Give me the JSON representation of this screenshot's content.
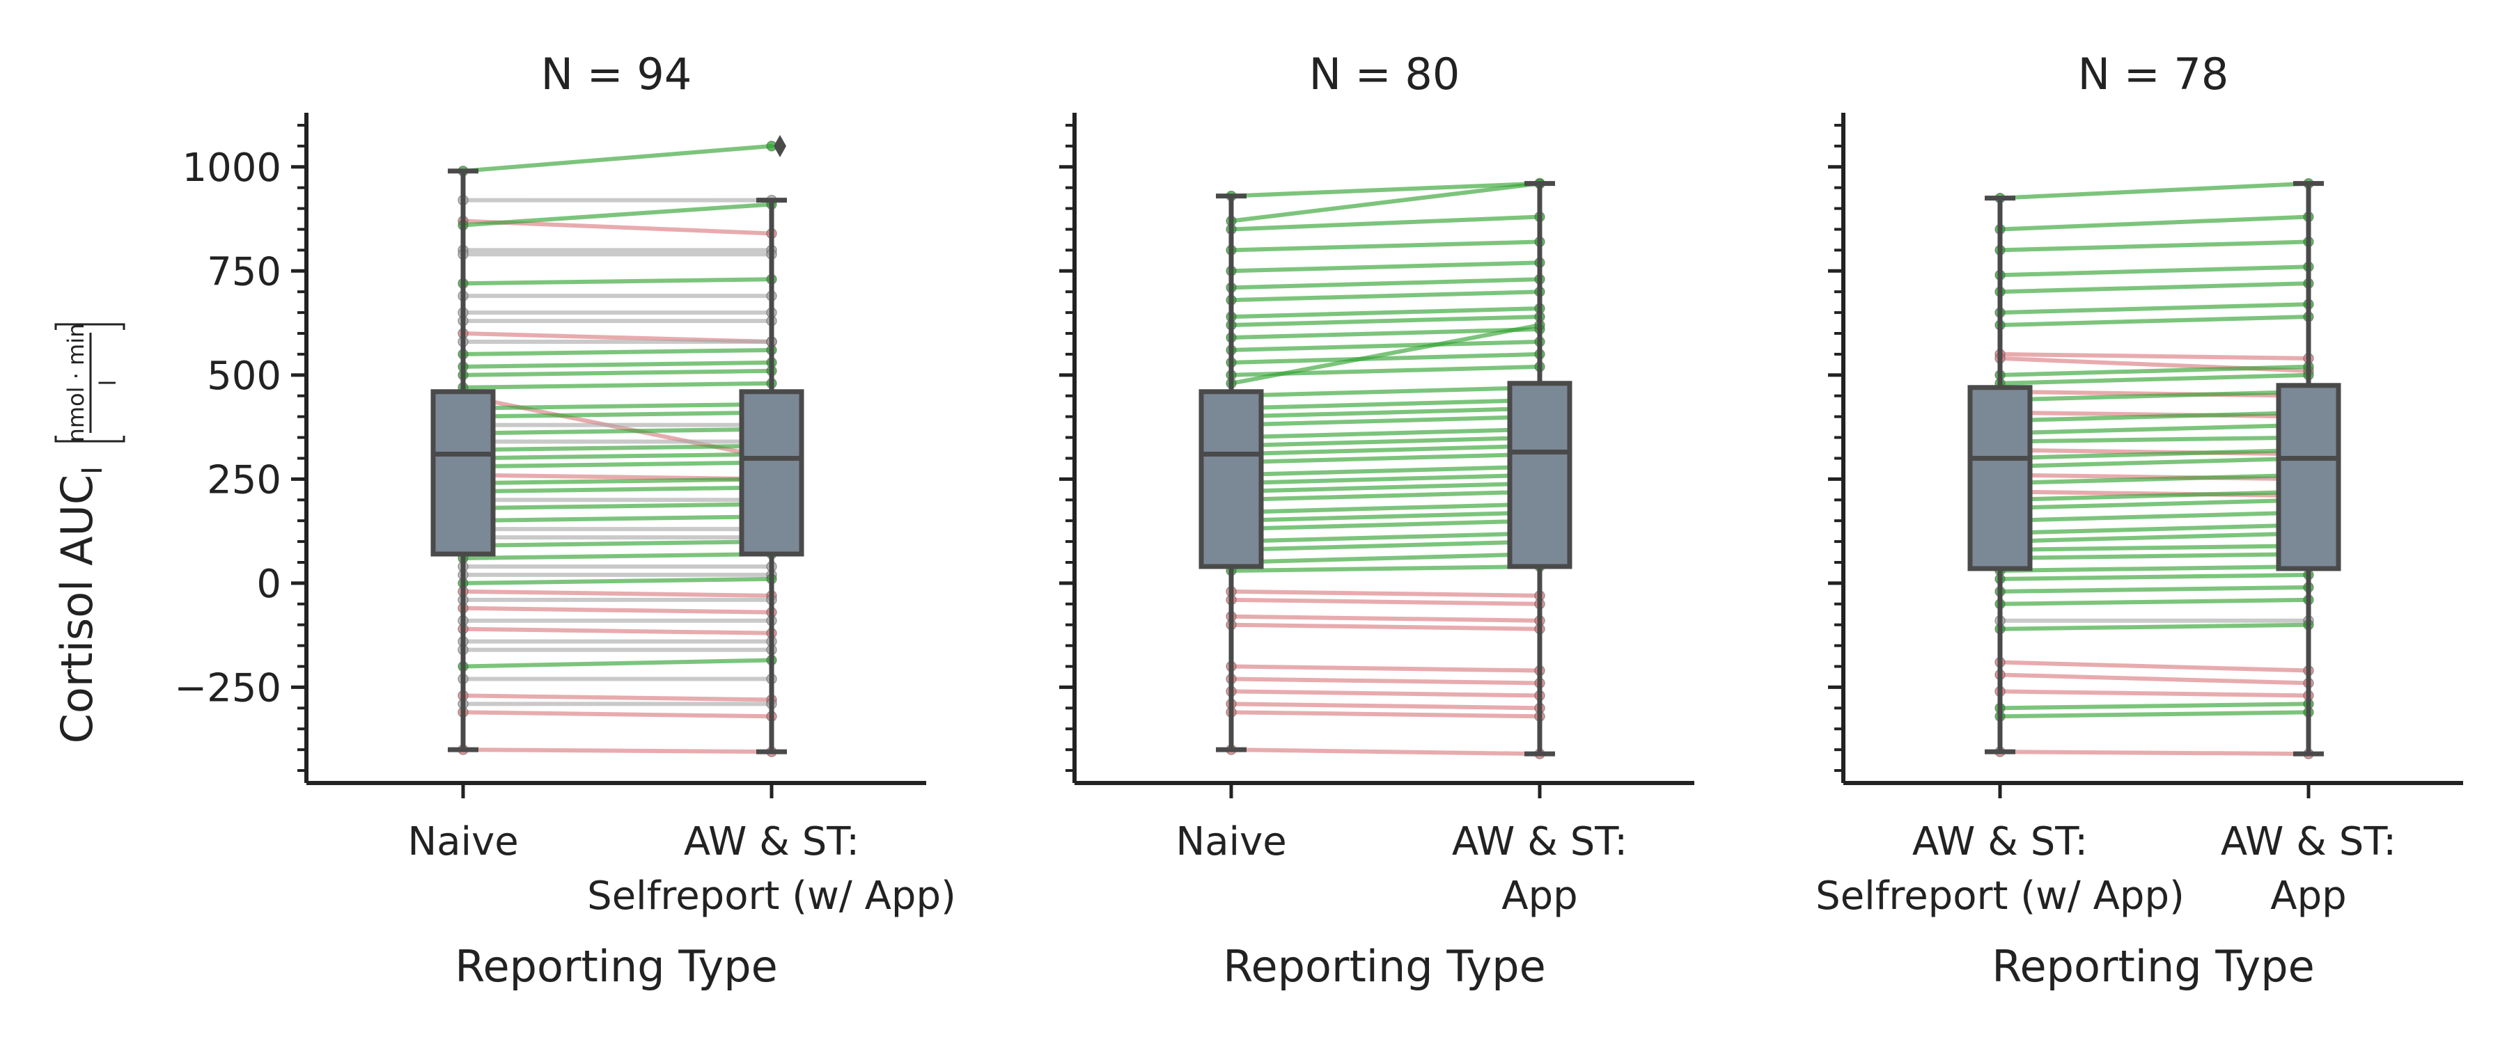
{
  "figure": {
    "ylabel_main": "Cortisol AUC",
    "ylabel_sub": "I",
    "ylabel_unit_numerator": "nmol · min",
    "ylabel_unit_denominator": "l"
  },
  "chart_data": [
    {
      "type": "box",
      "title": "N = 94",
      "xlabel": "Reporting Type",
      "categories": [
        [
          "Naive"
        ],
        [
          "AW & ST:",
          "Selfreport (w/ App)"
        ]
      ],
      "ylim": [
        -480,
        1130
      ],
      "yticks": [
        -250,
        0,
        250,
        500,
        750,
        1000
      ],
      "show_y_tick_labels": true,
      "boxes": [
        {
          "q1": 70,
          "median": 310,
          "q3": 460,
          "whisker_low": -400,
          "whisker_high": 990,
          "outliers": []
        },
        {
          "q1": 70,
          "median": 300,
          "q3": 460,
          "whisker_low": -405,
          "whisker_high": 920,
          "outliers": [
            1050
          ]
        }
      ],
      "pairs": [
        {
          "a": 990,
          "b": 1050,
          "change": "increase"
        },
        {
          "a": 920,
          "b": 920,
          "change": "none"
        },
        {
          "a": 870,
          "b": 840,
          "change": "decrease"
        },
        {
          "a": 860,
          "b": 910,
          "change": "increase"
        },
        {
          "a": 800,
          "b": 800,
          "change": "none"
        },
        {
          "a": 790,
          "b": 790,
          "change": "none"
        },
        {
          "a": 720,
          "b": 730,
          "change": "increase"
        },
        {
          "a": 690,
          "b": 690,
          "change": "none"
        },
        {
          "a": 650,
          "b": 650,
          "change": "none"
        },
        {
          "a": 630,
          "b": 630,
          "change": "none"
        },
        {
          "a": 600,
          "b": 580,
          "change": "decrease"
        },
        {
          "a": 580,
          "b": 580,
          "change": "none"
        },
        {
          "a": 550,
          "b": 560,
          "change": "increase"
        },
        {
          "a": 520,
          "b": 530,
          "change": "increase"
        },
        {
          "a": 500,
          "b": 510,
          "change": "increase"
        },
        {
          "a": 470,
          "b": 480,
          "change": "increase"
        },
        {
          "a": 450,
          "b": 300,
          "change": "decrease"
        },
        {
          "a": 420,
          "b": 430,
          "change": "increase"
        },
        {
          "a": 400,
          "b": 410,
          "change": "increase"
        },
        {
          "a": 380,
          "b": 380,
          "change": "none"
        },
        {
          "a": 360,
          "b": 370,
          "change": "increase"
        },
        {
          "a": 340,
          "b": 340,
          "change": "none"
        },
        {
          "a": 320,
          "b": 330,
          "change": "increase"
        },
        {
          "a": 300,
          "b": 310,
          "change": "increase"
        },
        {
          "a": 280,
          "b": 290,
          "change": "increase"
        },
        {
          "a": 260,
          "b": 250,
          "change": "decrease"
        },
        {
          "a": 240,
          "b": 250,
          "change": "increase"
        },
        {
          "a": 220,
          "b": 230,
          "change": "increase"
        },
        {
          "a": 200,
          "b": 200,
          "change": "none"
        },
        {
          "a": 180,
          "b": 190,
          "change": "increase"
        },
        {
          "a": 150,
          "b": 160,
          "change": "increase"
        },
        {
          "a": 130,
          "b": 130,
          "change": "none"
        },
        {
          "a": 110,
          "b": 110,
          "change": "none"
        },
        {
          "a": 90,
          "b": 100,
          "change": "increase"
        },
        {
          "a": 60,
          "b": 70,
          "change": "increase"
        },
        {
          "a": 40,
          "b": 40,
          "change": "none"
        },
        {
          "a": 20,
          "b": 20,
          "change": "none"
        },
        {
          "a": 0,
          "b": 10,
          "change": "increase"
        },
        {
          "a": -20,
          "b": -30,
          "change": "decrease"
        },
        {
          "a": -40,
          "b": -40,
          "change": "none"
        },
        {
          "a": -60,
          "b": -70,
          "change": "decrease"
        },
        {
          "a": -90,
          "b": -90,
          "change": "none"
        },
        {
          "a": -110,
          "b": -120,
          "change": "decrease"
        },
        {
          "a": -140,
          "b": -140,
          "change": "none"
        },
        {
          "a": -160,
          "b": -160,
          "change": "none"
        },
        {
          "a": -200,
          "b": -185,
          "change": "increase"
        },
        {
          "a": -230,
          "b": -230,
          "change": "none"
        },
        {
          "a": -270,
          "b": -280,
          "change": "decrease"
        },
        {
          "a": -290,
          "b": -290,
          "change": "none"
        },
        {
          "a": -310,
          "b": -320,
          "change": "decrease"
        },
        {
          "a": -400,
          "b": -405,
          "change": "decrease"
        }
      ]
    },
    {
      "type": "box",
      "title": "N = 80",
      "xlabel": "Reporting Type",
      "categories": [
        [
          "Naive"
        ],
        [
          "AW & ST:",
          "App"
        ]
      ],
      "ylim": [
        -480,
        1130
      ],
      "yticks": [
        -250,
        0,
        250,
        500,
        750,
        1000
      ],
      "show_y_tick_labels": false,
      "boxes": [
        {
          "q1": 40,
          "median": 310,
          "q3": 460,
          "whisker_low": -400,
          "whisker_high": 930,
          "outliers": []
        },
        {
          "q1": 40,
          "median": 315,
          "q3": 480,
          "whisker_low": -410,
          "whisker_high": 960,
          "outliers": []
        }
      ],
      "pairs": [
        {
          "a": 930,
          "b": 960,
          "change": "increase"
        },
        {
          "a": 870,
          "b": 960,
          "change": "increase"
        },
        {
          "a": 850,
          "b": 880,
          "change": "increase"
        },
        {
          "a": 800,
          "b": 820,
          "change": "increase"
        },
        {
          "a": 750,
          "b": 770,
          "change": "increase"
        },
        {
          "a": 710,
          "b": 730,
          "change": "increase"
        },
        {
          "a": 680,
          "b": 700,
          "change": "increase"
        },
        {
          "a": 640,
          "b": 660,
          "change": "increase"
        },
        {
          "a": 620,
          "b": 640,
          "change": "increase"
        },
        {
          "a": 590,
          "b": 610,
          "change": "increase"
        },
        {
          "a": 560,
          "b": 580,
          "change": "increase"
        },
        {
          "a": 530,
          "b": 550,
          "change": "increase"
        },
        {
          "a": 500,
          "b": 520,
          "change": "increase"
        },
        {
          "a": 480,
          "b": 620,
          "change": "increase"
        },
        {
          "a": 450,
          "b": 470,
          "change": "increase"
        },
        {
          "a": 420,
          "b": 440,
          "change": "increase"
        },
        {
          "a": 400,
          "b": 420,
          "change": "increase"
        },
        {
          "a": 380,
          "b": 400,
          "change": "increase"
        },
        {
          "a": 350,
          "b": 370,
          "change": "increase"
        },
        {
          "a": 330,
          "b": 350,
          "change": "increase"
        },
        {
          "a": 310,
          "b": 330,
          "change": "increase"
        },
        {
          "a": 290,
          "b": 310,
          "change": "increase"
        },
        {
          "a": 260,
          "b": 280,
          "change": "increase"
        },
        {
          "a": 240,
          "b": 260,
          "change": "increase"
        },
        {
          "a": 220,
          "b": 240,
          "change": "increase"
        },
        {
          "a": 200,
          "b": 220,
          "change": "increase"
        },
        {
          "a": 170,
          "b": 190,
          "change": "increase"
        },
        {
          "a": 150,
          "b": 170,
          "change": "increase"
        },
        {
          "a": 130,
          "b": 150,
          "change": "increase"
        },
        {
          "a": 100,
          "b": 120,
          "change": "increase"
        },
        {
          "a": 80,
          "b": 100,
          "change": "increase"
        },
        {
          "a": 50,
          "b": 70,
          "change": "increase"
        },
        {
          "a": 30,
          "b": 40,
          "change": "increase"
        },
        {
          "a": -20,
          "b": -30,
          "change": "decrease"
        },
        {
          "a": -40,
          "b": -50,
          "change": "decrease"
        },
        {
          "a": -80,
          "b": -90,
          "change": "decrease"
        },
        {
          "a": -100,
          "b": -110,
          "change": "decrease"
        },
        {
          "a": -200,
          "b": -210,
          "change": "decrease"
        },
        {
          "a": -230,
          "b": -240,
          "change": "decrease"
        },
        {
          "a": -260,
          "b": -270,
          "change": "decrease"
        },
        {
          "a": -290,
          "b": -300,
          "change": "decrease"
        },
        {
          "a": -310,
          "b": -320,
          "change": "decrease"
        },
        {
          "a": -400,
          "b": -410,
          "change": "decrease"
        }
      ]
    },
    {
      "type": "box",
      "title": "N = 78",
      "xlabel": "Reporting Type",
      "categories": [
        [
          "AW & ST:",
          "Selfreport (w/ App)"
        ],
        [
          "AW & ST:",
          "App"
        ]
      ],
      "ylim": [
        -480,
        1130
      ],
      "yticks": [
        -250,
        0,
        250,
        500,
        750,
        1000
      ],
      "show_y_tick_labels": false,
      "boxes": [
        {
          "q1": 35,
          "median": 300,
          "q3": 470,
          "whisker_low": -405,
          "whisker_high": 925,
          "outliers": []
        },
        {
          "q1": 35,
          "median": 300,
          "q3": 475,
          "whisker_low": -410,
          "whisker_high": 960,
          "outliers": []
        }
      ],
      "pairs": [
        {
          "a": 925,
          "b": 960,
          "change": "increase"
        },
        {
          "a": 850,
          "b": 880,
          "change": "increase"
        },
        {
          "a": 800,
          "b": 820,
          "change": "increase"
        },
        {
          "a": 740,
          "b": 760,
          "change": "increase"
        },
        {
          "a": 700,
          "b": 720,
          "change": "increase"
        },
        {
          "a": 650,
          "b": 670,
          "change": "increase"
        },
        {
          "a": 620,
          "b": 640,
          "change": "increase"
        },
        {
          "a": 550,
          "b": 540,
          "change": "decrease"
        },
        {
          "a": 540,
          "b": 510,
          "change": "decrease"
        },
        {
          "a": 500,
          "b": 520,
          "change": "increase"
        },
        {
          "a": 480,
          "b": 500,
          "change": "increase"
        },
        {
          "a": 460,
          "b": 450,
          "change": "decrease"
        },
        {
          "a": 440,
          "b": 460,
          "change": "increase"
        },
        {
          "a": 410,
          "b": 400,
          "change": "decrease"
        },
        {
          "a": 390,
          "b": 410,
          "change": "increase"
        },
        {
          "a": 360,
          "b": 380,
          "change": "increase"
        },
        {
          "a": 340,
          "b": 350,
          "change": "increase"
        },
        {
          "a": 320,
          "b": 310,
          "change": "decrease"
        },
        {
          "a": 300,
          "b": 320,
          "change": "increase"
        },
        {
          "a": 280,
          "b": 300,
          "change": "increase"
        },
        {
          "a": 260,
          "b": 250,
          "change": "decrease"
        },
        {
          "a": 240,
          "b": 260,
          "change": "increase"
        },
        {
          "a": 220,
          "b": 210,
          "change": "decrease"
        },
        {
          "a": 200,
          "b": 220,
          "change": "increase"
        },
        {
          "a": 180,
          "b": 200,
          "change": "increase"
        },
        {
          "a": 150,
          "b": 170,
          "change": "increase"
        },
        {
          "a": 120,
          "b": 140,
          "change": "increase"
        },
        {
          "a": 100,
          "b": 120,
          "change": "increase"
        },
        {
          "a": 80,
          "b": 90,
          "change": "increase"
        },
        {
          "a": 60,
          "b": 70,
          "change": "increase"
        },
        {
          "a": 30,
          "b": 40,
          "change": "increase"
        },
        {
          "a": 10,
          "b": 20,
          "change": "increase"
        },
        {
          "a": -20,
          "b": -10,
          "change": "increase"
        },
        {
          "a": -50,
          "b": -40,
          "change": "increase"
        },
        {
          "a": -90,
          "b": -90,
          "change": "none"
        },
        {
          "a": -110,
          "b": -100,
          "change": "increase"
        },
        {
          "a": -190,
          "b": -210,
          "change": "decrease"
        },
        {
          "a": -220,
          "b": -240,
          "change": "decrease"
        },
        {
          "a": -260,
          "b": -270,
          "change": "decrease"
        },
        {
          "a": -300,
          "b": -290,
          "change": "increase"
        },
        {
          "a": -320,
          "b": -310,
          "change": "increase"
        },
        {
          "a": -405,
          "b": -410,
          "change": "decrease"
        }
      ]
    }
  ],
  "colors": {
    "increase": "#2ca02c",
    "decrease": "#d9787c",
    "none": "#a8a8a8",
    "box_fill": "#7b8896",
    "box_edge": "#4a4a4a",
    "point": "#5a8a5a",
    "axis": "#222222"
  }
}
